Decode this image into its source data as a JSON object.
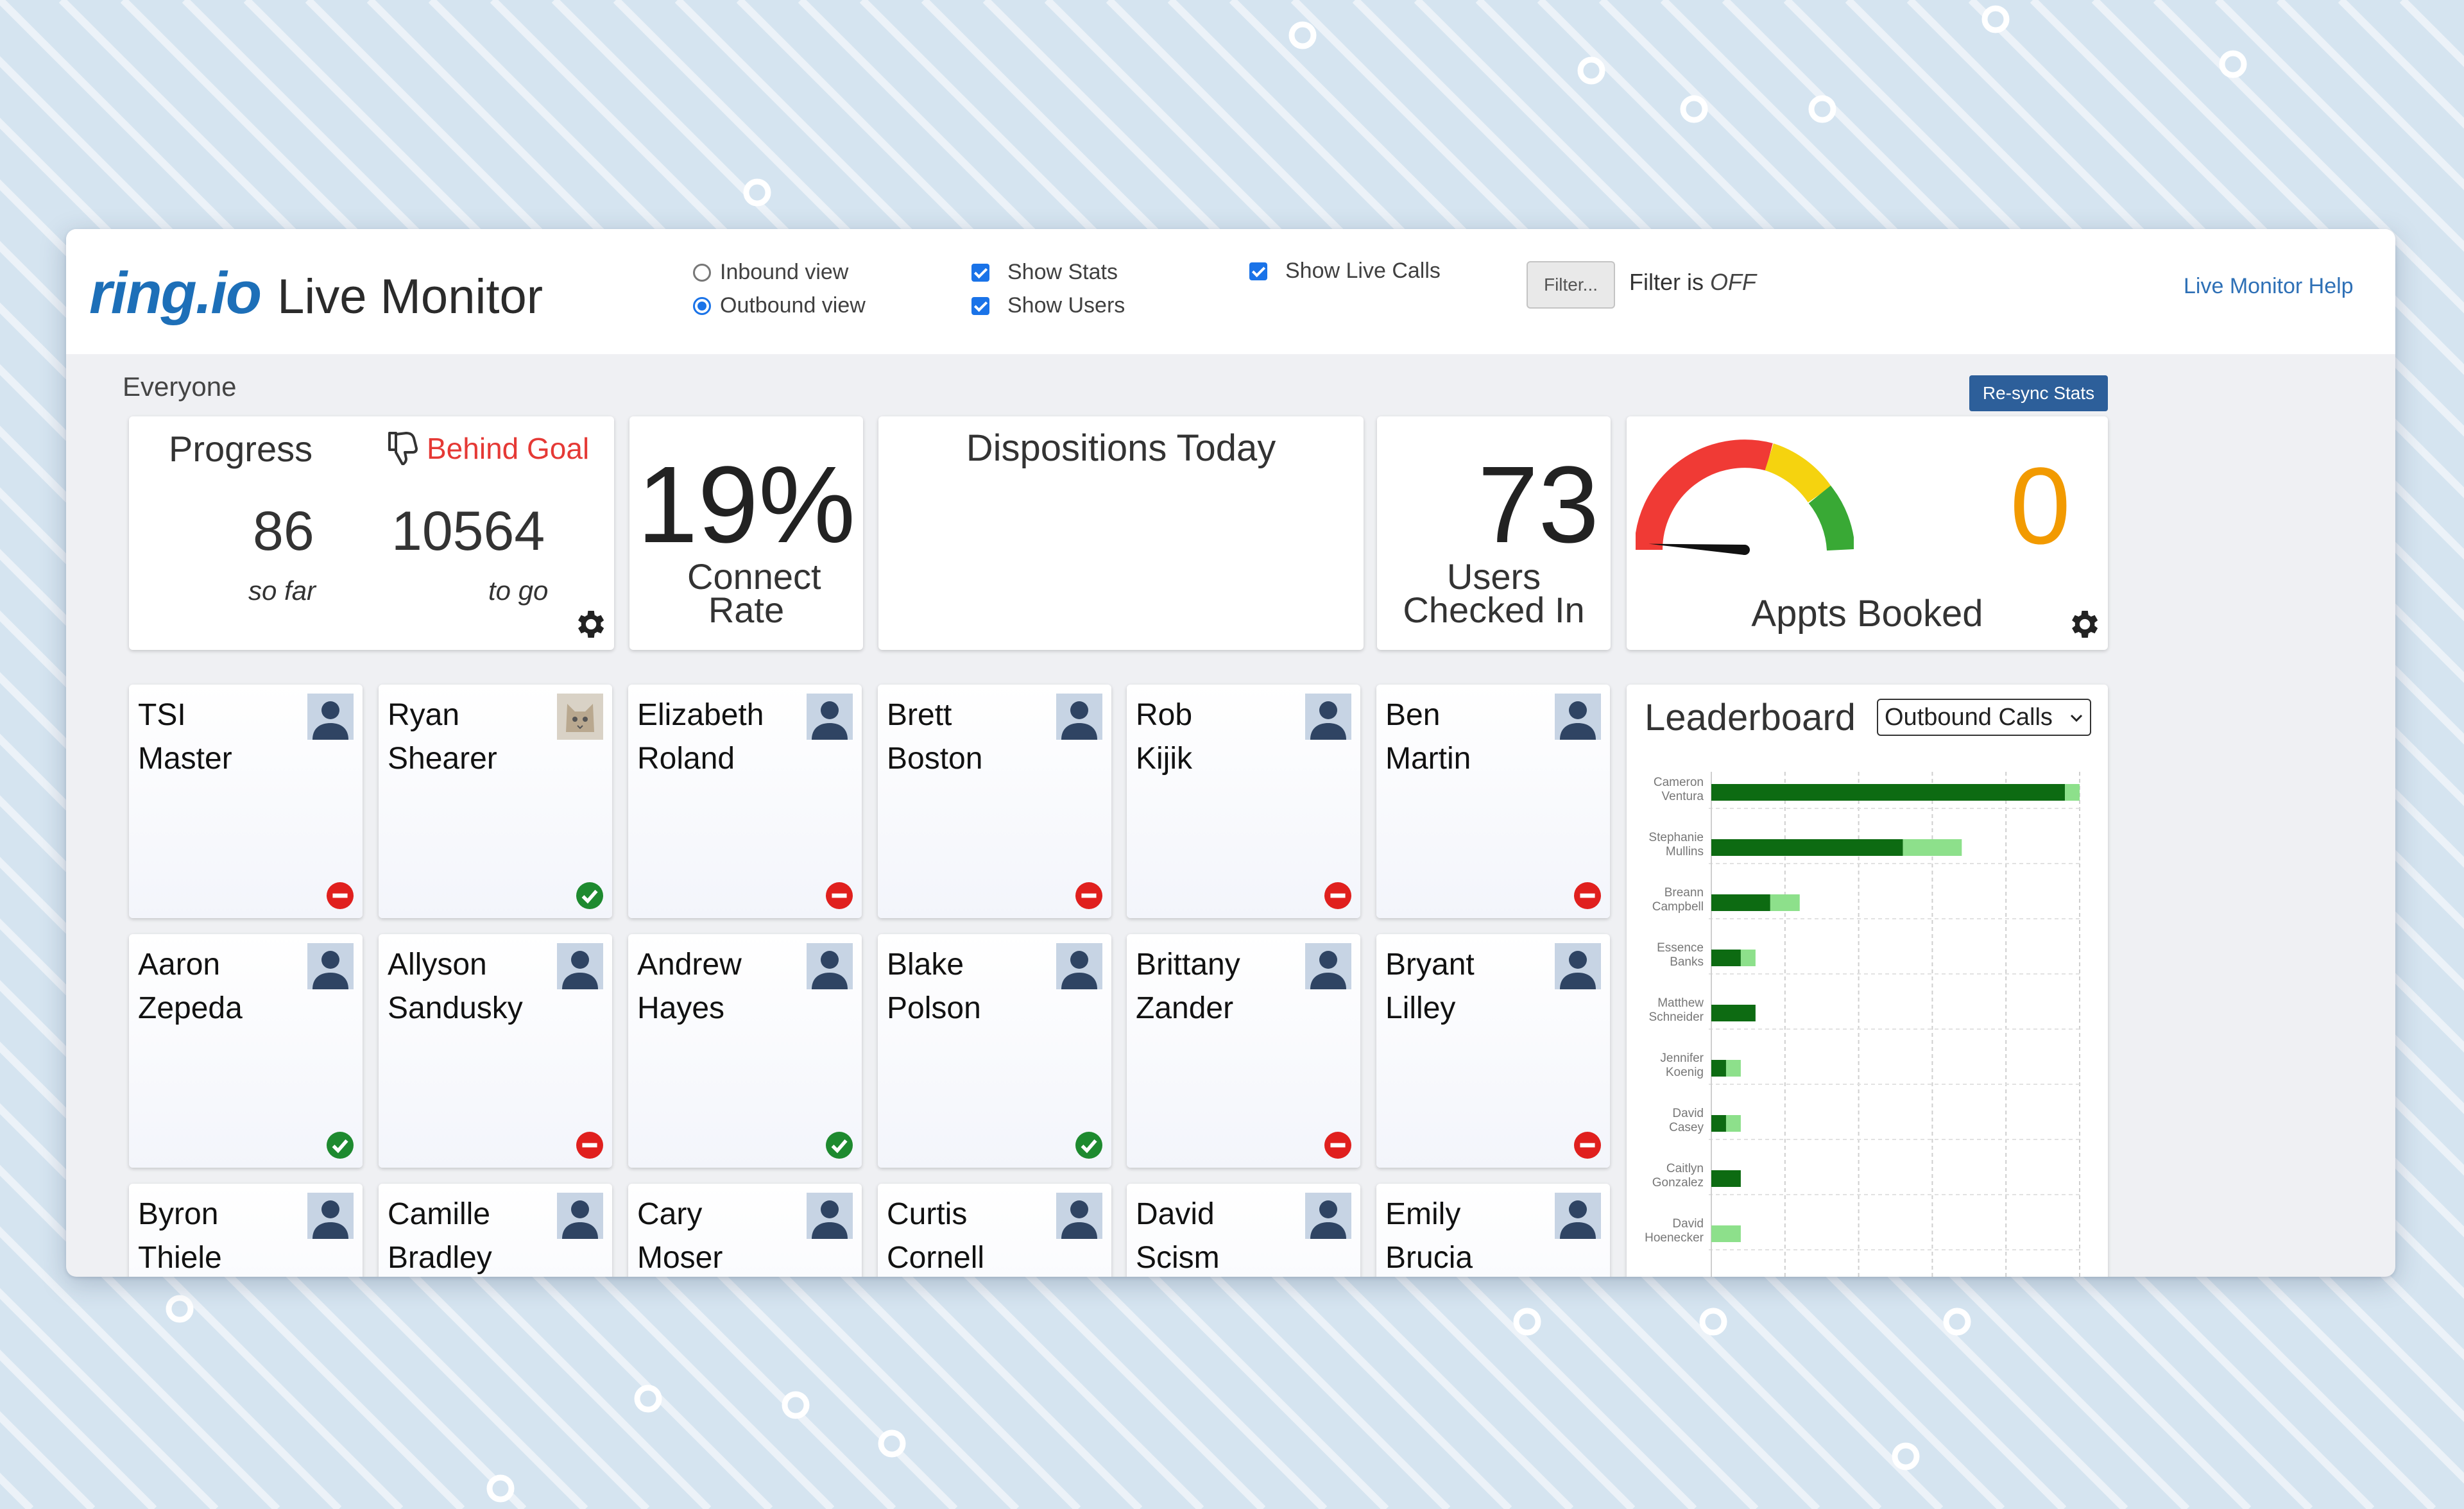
{
  "header": {
    "brand": "ring.io",
    "title": "Live Monitor",
    "inbound_label": "Inbound view",
    "outbound_label": "Outbound view",
    "selected_view": "Outbound view",
    "show_stats_label": "Show Stats",
    "show_users_label": "Show Users",
    "show_live_calls_label": "Show Live Calls",
    "filter_button": "Filter...",
    "filter_prefix": "Filter is",
    "filter_state": "OFF",
    "help_link": "Live Monitor Help"
  },
  "group_label": "Everyone",
  "resync_button": "Re-sync Stats",
  "progress": {
    "title": "Progress",
    "status": "Behind Goal",
    "so_far": "86",
    "so_far_label": "so far",
    "to_go": "10564",
    "to_go_label": "to go"
  },
  "connect_rate": {
    "value": "19%",
    "label": "Connect Rate"
  },
  "dispositions": {
    "title": "Dispositions Today"
  },
  "users_checked_in": {
    "value": "73",
    "label": "Users Checked In"
  },
  "appts": {
    "value": "0",
    "label": "Appts Booked",
    "gauge_level": 0.02
  },
  "colors": {
    "brand_blue": "#1d6fb8",
    "behind_goal_red": "#e53935",
    "appts_orange": "#f29a00",
    "status_green": "#1e8a2f",
    "status_red": "#e0201e",
    "bar_dark": "#0d6b12",
    "bar_light": "#8de08b"
  },
  "users": [
    {
      "first": "TSI",
      "last": "Master",
      "status": "unavailable",
      "avatar": "default"
    },
    {
      "first": "Ryan",
      "last": "Shearer",
      "status": "available",
      "avatar": "cat-photo"
    },
    {
      "first": "Elizabeth",
      "last": "Roland",
      "status": "unavailable",
      "avatar": "default"
    },
    {
      "first": "Brett",
      "last": "Boston",
      "status": "unavailable",
      "avatar": "default"
    },
    {
      "first": "Rob",
      "last": "Kijik",
      "status": "unavailable",
      "avatar": "default"
    },
    {
      "first": "Ben",
      "last": "Martin",
      "status": "unavailable",
      "avatar": "default"
    },
    {
      "first": "Aaron",
      "last": "Zepeda",
      "status": "available",
      "avatar": "default"
    },
    {
      "first": "Allyson",
      "last": "Sandusky",
      "status": "unavailable",
      "avatar": "default"
    },
    {
      "first": "Andrew",
      "last": "Hayes",
      "status": "available",
      "avatar": "default"
    },
    {
      "first": "Blake",
      "last": "Polson",
      "status": "available",
      "avatar": "default"
    },
    {
      "first": "Brittany",
      "last": "Zander",
      "status": "unavailable",
      "avatar": "default"
    },
    {
      "first": "Bryant",
      "last": "Lilley",
      "status": "unavailable",
      "avatar": "default"
    },
    {
      "first": "Byron",
      "last": "Thiele",
      "status": "hidden",
      "avatar": "default"
    },
    {
      "first": "Camille",
      "last": "Bradley",
      "status": "hidden",
      "avatar": "default"
    },
    {
      "first": "Cary",
      "last": "Moser",
      "status": "hidden",
      "avatar": "default"
    },
    {
      "first": "Curtis",
      "last": "Cornell",
      "status": "hidden",
      "avatar": "default"
    },
    {
      "first": "David",
      "last": "Scism",
      "status": "hidden",
      "avatar": "default"
    },
    {
      "first": "Emily",
      "last": "Brucia",
      "status": "hidden",
      "avatar": "default"
    }
  ],
  "leaderboard": {
    "title": "Leaderboard",
    "selected_metric": "Outbound Calls",
    "chart_data": {
      "type": "bar",
      "orientation": "horizontal",
      "stacked": true,
      "categories": [
        [
          "Cameron",
          "Ventura"
        ],
        [
          "Stephanie",
          "Mullins"
        ],
        [
          "Breann",
          "Campbell"
        ],
        [
          "Essence",
          "Banks"
        ],
        [
          "Matthew",
          "Schneider"
        ],
        [
          "Jennifer",
          "Koenig"
        ],
        [
          "David",
          "Casey"
        ],
        [
          "Caitlyn",
          "Gonzalez"
        ],
        [
          "David",
          "Hoenecker"
        ]
      ],
      "series": [
        {
          "values": [
            96,
            52,
            16,
            8,
            12,
            4,
            4,
            8,
            0
          ]
        },
        {
          "values": [
            4,
            16,
            8,
            4,
            0,
            4,
            4,
            0,
            8
          ]
        }
      ],
      "xlim": [
        0,
        100
      ],
      "grid": true
    }
  }
}
